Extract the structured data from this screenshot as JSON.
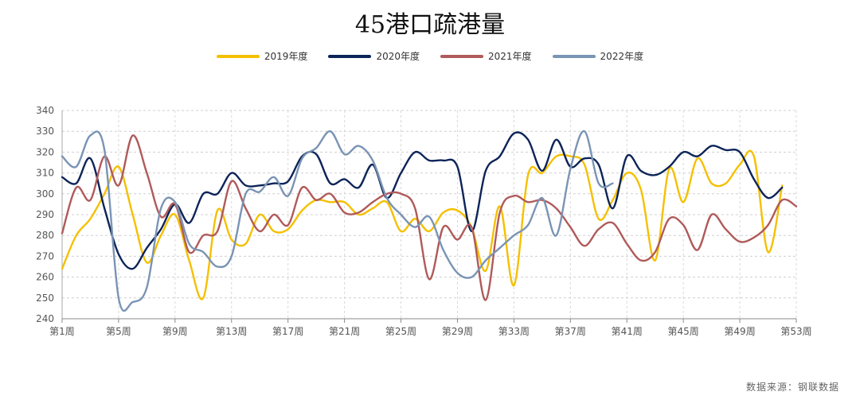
{
  "chart_data": {
    "type": "line",
    "title": "45港口疏港量",
    "source": "数据来源：钢联数据",
    "xlabel": "",
    "ylabel": "",
    "ylim": [
      240,
      340
    ],
    "yticks": [
      240,
      250,
      260,
      270,
      280,
      290,
      300,
      310,
      320,
      330,
      340
    ],
    "xlim": [
      1,
      53
    ],
    "xticks": [
      1,
      5,
      9,
      13,
      17,
      21,
      25,
      29,
      33,
      37,
      41,
      45,
      49,
      53
    ],
    "xtick_labels": [
      "第1周",
      "第5周",
      "第9周",
      "第13周",
      "第17周",
      "第21周",
      "第25周",
      "第29周",
      "第33周",
      "第37周",
      "第41周",
      "第45周",
      "第49周",
      "第53周"
    ],
    "grid": true,
    "legend_position": "top-center",
    "series": [
      {
        "name": "2019年度",
        "color": "#f5c000",
        "x": [
          1,
          2,
          3,
          4,
          5,
          6,
          7,
          8,
          9,
          10,
          11,
          12,
          13,
          14,
          15,
          16,
          17,
          18,
          19,
          20,
          21,
          22,
          23,
          24,
          25,
          26,
          27,
          28,
          29,
          30,
          31,
          32,
          33,
          34,
          35,
          36,
          37,
          38,
          39,
          40,
          41,
          42,
          43,
          44,
          45,
          46,
          47,
          48,
          49,
          50,
          51,
          52
        ],
        "values": [
          264,
          280,
          288,
          300,
          313,
          290,
          267,
          280,
          290,
          268,
          250,
          292,
          278,
          276,
          290,
          282,
          283,
          292,
          297,
          296,
          296,
          290,
          293,
          296,
          282,
          288,
          282,
          291,
          292,
          284,
          263,
          294,
          256,
          309,
          310,
          318,
          318,
          314,
          288,
          297,
          310,
          302,
          268,
          312,
          296,
          317,
          305,
          305,
          314,
          318,
          272,
          304
        ]
      },
      {
        "name": "2020年度",
        "color": "#0d2458",
        "x": [
          1,
          2,
          3,
          4,
          5,
          6,
          7,
          8,
          9,
          10,
          11,
          12,
          13,
          14,
          15,
          16,
          17,
          18,
          19,
          20,
          21,
          22,
          23,
          24,
          25,
          26,
          27,
          28,
          29,
          30,
          31,
          32,
          33,
          34,
          35,
          36,
          37,
          38,
          39,
          40,
          41,
          42,
          43,
          44,
          45,
          46,
          47,
          48,
          49,
          50,
          51,
          52
        ],
        "values": [
          308,
          305,
          317,
          293,
          271,
          264,
          274,
          283,
          295,
          286,
          300,
          300,
          310,
          304,
          304,
          305,
          306,
          318,
          319,
          305,
          307,
          303,
          314,
          298,
          310,
          320,
          316,
          316,
          313,
          282,
          311,
          318,
          329,
          326,
          311,
          326,
          313,
          317,
          314,
          293,
          318,
          311,
          309,
          313,
          320,
          318,
          323,
          321,
          320,
          307,
          298,
          303
        ]
      },
      {
        "name": "2021年度",
        "color": "#b05a5a",
        "x": [
          1,
          2,
          3,
          4,
          5,
          6,
          7,
          8,
          9,
          10,
          11,
          12,
          13,
          14,
          15,
          16,
          17,
          18,
          19,
          20,
          21,
          22,
          23,
          24,
          25,
          26,
          27,
          28,
          29,
          30,
          31,
          32,
          33,
          34,
          35,
          36,
          37,
          38,
          39,
          40,
          41,
          42,
          43,
          44,
          45,
          46,
          47,
          48,
          49,
          50,
          51,
          52,
          53
        ],
        "values": [
          281,
          303,
          297,
          318,
          304,
          328,
          310,
          289,
          295,
          272,
          280,
          282,
          306,
          293,
          282,
          290,
          285,
          303,
          297,
          300,
          291,
          291,
          296,
          300,
          300,
          293,
          259,
          284,
          278,
          284,
          249,
          291,
          299,
          296,
          297,
          293,
          284,
          275,
          283,
          286,
          276,
          268,
          272,
          288,
          285,
          273,
          290,
          283,
          277,
          279,
          285,
          297,
          294
        ]
      },
      {
        "name": "2022年度",
        "color": "#7a94b4",
        "x": [
          1,
          2,
          3,
          4,
          5,
          6,
          7,
          8,
          9,
          10,
          11,
          12,
          13,
          14,
          15,
          16,
          17,
          18,
          19,
          20,
          21,
          22,
          23,
          24,
          25,
          26,
          27,
          28,
          29,
          30,
          31,
          32,
          33,
          34,
          35,
          36,
          37,
          38,
          39,
          40
        ],
        "values": [
          318,
          313,
          328,
          321,
          250,
          248,
          255,
          293,
          296,
          276,
          272,
          265,
          270,
          300,
          301,
          308,
          299,
          317,
          322,
          330,
          319,
          323,
          316,
          298,
          290,
          284,
          289,
          273,
          262,
          260,
          268,
          274,
          280,
          285,
          298,
          280,
          312,
          330,
          305,
          305
        ]
      }
    ]
  }
}
